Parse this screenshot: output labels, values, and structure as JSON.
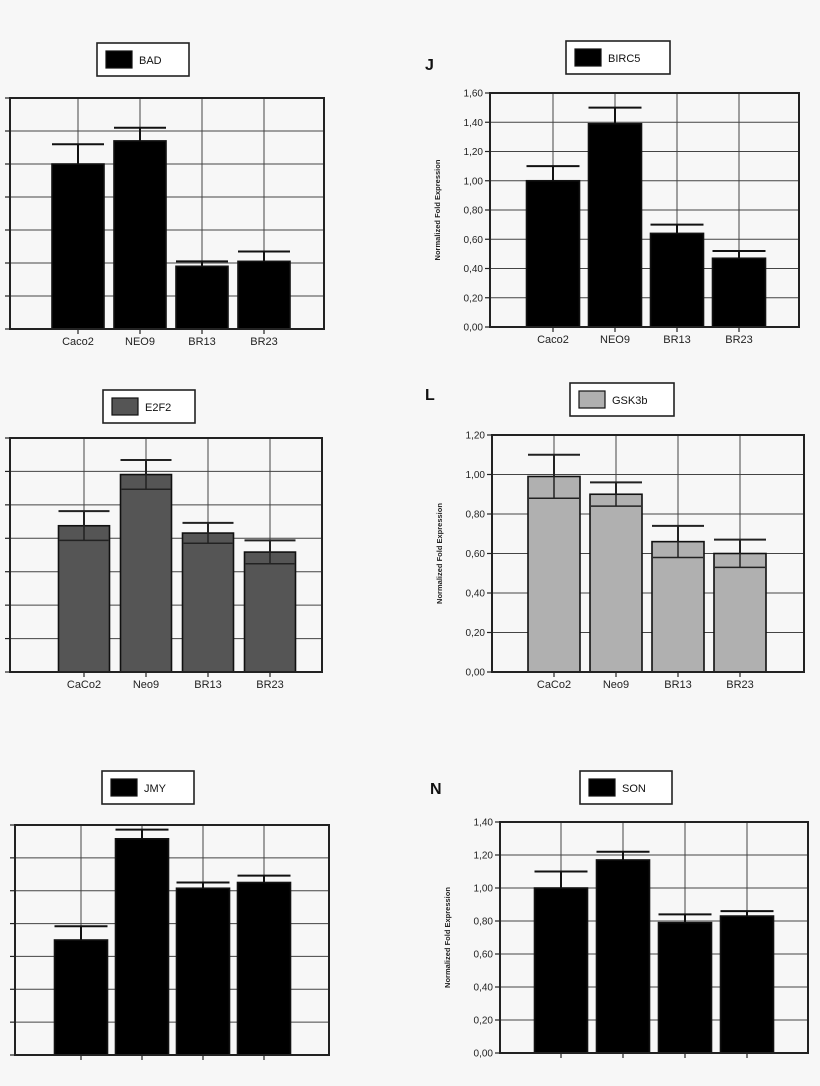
{
  "chart_data": [
    {
      "type": "bar",
      "title": "",
      "legend": "BAD",
      "ylabel": "",
      "panel_label": "",
      "categories": [
        "Caco2",
        "NEO9",
        "BR13",
        "BR23"
      ],
      "values": [
        1.0,
        1.14,
        0.38,
        0.41
      ],
      "errors": [
        0.12,
        0.08,
        0.03,
        0.06
      ],
      "ylim": [
        0,
        1.4
      ],
      "yticks": [],
      "color": "#000000",
      "grid": true
    },
    {
      "type": "bar",
      "title": "",
      "legend": "BIRC5",
      "ylabel": "Normalized Fold Expression",
      "panel_label": "J",
      "categories": [
        "Caco2",
        "NEO9",
        "BR13",
        "BR23"
      ],
      "values": [
        1.0,
        1.39,
        0.64,
        0.47
      ],
      "errors": [
        0.1,
        0.11,
        0.06,
        0.05
      ],
      "ylim": [
        0,
        1.6
      ],
      "yticks": [
        "0,00",
        "0,20",
        "0,40",
        "0,60",
        "0,80",
        "1,00",
        "1,20",
        "1,40",
        "1,60"
      ],
      "color": "#000000",
      "grid": true
    },
    {
      "type": "bar",
      "title": "",
      "legend": "E2F2",
      "ylabel": "",
      "panel_label": "",
      "categories": [
        "CaCo2",
        "Neo9",
        "BR13",
        "BR23"
      ],
      "values": [
        1.0,
        1.35,
        0.95,
        0.82
      ],
      "errors": [
        0.1,
        0.1,
        0.07,
        0.08
      ],
      "ylim": [
        0,
        1.6
      ],
      "yticks": [],
      "color": "#555555",
      "grid": true
    },
    {
      "type": "bar",
      "title": "",
      "legend": "GSK3b",
      "ylabel": "Normalized Fold Expression",
      "panel_label": "L",
      "categories": [
        "CaCo2",
        "Neo9",
        "BR13",
        "BR23"
      ],
      "values": [
        0.99,
        0.9,
        0.66,
        0.6
      ],
      "errors": [
        0.11,
        0.06,
        0.08,
        0.07
      ],
      "ylim": [
        0,
        1.2
      ],
      "yticks": [
        "0,00",
        "0,20",
        "0,40",
        "0,60",
        "0,80",
        "1,00",
        "1,20"
      ],
      "color": "#b0b0b0",
      "grid": true
    },
    {
      "type": "bar",
      "title": "",
      "legend": "JMY",
      "ylabel": "",
      "panel_label": "",
      "categories": [
        "",
        "",
        "",
        ""
      ],
      "values": [
        1.0,
        1.88,
        1.45,
        1.5
      ],
      "errors": [
        0.12,
        0.08,
        0.05,
        0.06
      ],
      "ylim": [
        0,
        2.0
      ],
      "yticks": [],
      "color": "#000000",
      "grid": true
    },
    {
      "type": "bar",
      "title": "",
      "legend": "SON",
      "ylabel": "Normalized Fold Expression",
      "panel_label": "N",
      "categories": [
        "",
        "",
        "",
        ""
      ],
      "values": [
        1.0,
        1.17,
        0.79,
        0.83
      ],
      "errors": [
        0.1,
        0.05,
        0.05,
        0.03
      ],
      "ylim": [
        0,
        1.4
      ],
      "yticks": [
        "0,00",
        "0,20",
        "0,40",
        "0,60",
        "0,80",
        "1,00",
        "1,20",
        "1,40"
      ],
      "color": "#000000",
      "grid": true
    }
  ]
}
